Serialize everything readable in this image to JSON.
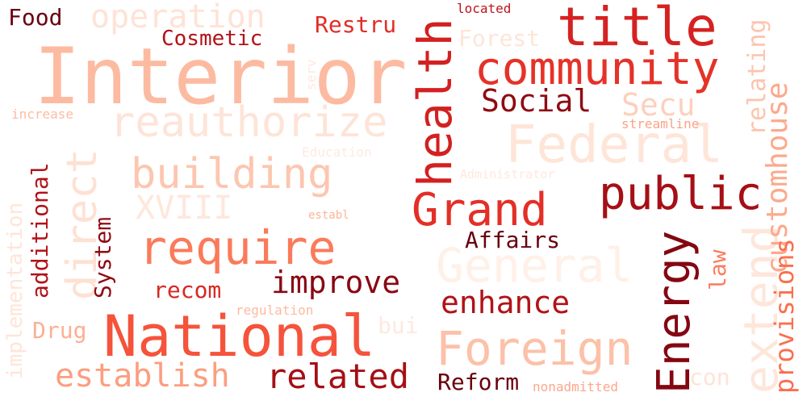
{
  "words": [
    {
      "text": "Interior",
      "color": "#fcbba1"
    },
    {
      "text": "title",
      "color": "#d52221"
    },
    {
      "text": "community",
      "color": "#e53228"
    },
    {
      "text": "health",
      "color": "#d32020"
    },
    {
      "text": "Federal",
      "color": "#fee5d8"
    },
    {
      "text": "reauthorize",
      "color": "#fee4d8"
    },
    {
      "text": "building",
      "color": "#fdc6b0"
    },
    {
      "text": "public",
      "color": "#a50f15"
    },
    {
      "text": "Grand",
      "color": "#e32f27"
    },
    {
      "text": "require",
      "color": "#fb7a5a"
    },
    {
      "text": "direct",
      "color": "#fee1d3"
    },
    {
      "text": "National",
      "color": "#f5533b"
    },
    {
      "text": "Energy",
      "color": "#840711"
    },
    {
      "text": "extend",
      "color": "#fee6da"
    },
    {
      "text": "General",
      "color": "#fff0e8"
    },
    {
      "text": "Foreign",
      "color": "#fcc1a8"
    },
    {
      "text": "Social",
      "color": "#8f0b13"
    },
    {
      "text": "Secu",
      "color": "#fdd0bc"
    },
    {
      "text": "improve",
      "color": "#8a0812"
    },
    {
      "text": "enhance",
      "color": "#b11218"
    },
    {
      "text": "related",
      "color": "#a50f15"
    },
    {
      "text": "establish",
      "color": "#fc9e80"
    },
    {
      "text": "operation",
      "color": "#fee3d6"
    },
    {
      "text": "XVIII",
      "color": "#fee7dc"
    },
    {
      "text": "customhouse",
      "color": "#fca98c"
    },
    {
      "text": "provisions",
      "color": "#fb6e4e"
    },
    {
      "text": "relating",
      "color": "#fcc4ad"
    },
    {
      "text": "Cosmetic",
      "color": "#b11218"
    },
    {
      "text": "Restru",
      "color": "#e12d26"
    },
    {
      "text": "Forest",
      "color": "#fee5d8"
    },
    {
      "text": "Food",
      "color": "#690010"
    },
    {
      "text": "additional",
      "color": "#b11218"
    },
    {
      "text": "System",
      "color": "#900a12"
    },
    {
      "text": "Affairs",
      "color": "#67000d"
    },
    {
      "text": "recom",
      "color": "#d92723"
    },
    {
      "text": "law",
      "color": "#fb7c5c"
    },
    {
      "text": "Drug",
      "color": "#fcaf93"
    },
    {
      "text": "Reform",
      "color": "#67000d"
    },
    {
      "text": "implementation",
      "color": "#fee5d8"
    },
    {
      "text": "bui",
      "color": "#fee9df"
    },
    {
      "text": "con",
      "color": "#fee3d6"
    },
    {
      "text": "regulation",
      "color": "#fcbba1"
    },
    {
      "text": "nonadmitted",
      "color": "#fca78b"
    },
    {
      "text": "located",
      "color": "#bc141a"
    },
    {
      "text": "increase",
      "color": "#fcbca2"
    },
    {
      "text": "streamline",
      "color": "#fca285"
    },
    {
      "text": "Education",
      "color": "#feeae1"
    },
    {
      "text": "Administrator",
      "color": "#fee8de"
    },
    {
      "text": "establ",
      "color": "#fcb499"
    },
    {
      "text": "serv",
      "color": "#fee8dd"
    }
  ]
}
